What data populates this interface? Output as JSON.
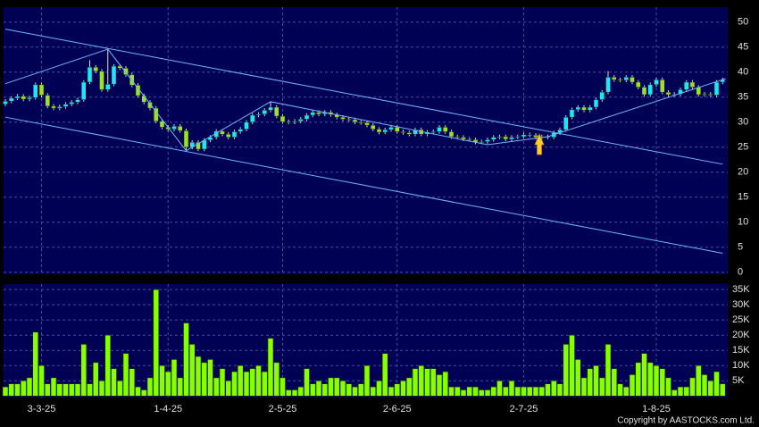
{
  "chart_data": [
    {
      "type": "candlestick",
      "categories": [
        null,
        null,
        null,
        null,
        null,
        null,
        "3-3-25",
        null,
        null,
        null,
        null,
        null,
        null,
        null,
        null,
        null,
        null,
        null,
        null,
        null,
        null,
        null,
        null,
        null,
        null,
        null,
        null,
        "1-4-25",
        null,
        null,
        null,
        null,
        null,
        null,
        null,
        null,
        null,
        null,
        null,
        null,
        null,
        null,
        null,
        null,
        null,
        null,
        "2-5-25",
        null,
        null,
        null,
        null,
        null,
        null,
        null,
        null,
        null,
        null,
        null,
        null,
        null,
        null,
        null,
        null,
        null,
        null,
        "2-6-25",
        null,
        null,
        null,
        null,
        null,
        null,
        null,
        null,
        null,
        null,
        null,
        null,
        null,
        null,
        null,
        null,
        null,
        null,
        null,
        null,
        "2-7-25",
        null,
        null,
        null,
        null,
        null,
        null,
        null,
        null,
        null,
        null,
        null,
        null,
        null,
        null,
        null,
        null,
        null,
        null,
        null,
        null,
        null,
        "1-8-25",
        null,
        null,
        null,
        null,
        null,
        null,
        null,
        null,
        null,
        null,
        null
      ],
      "open": [
        33.6,
        34.2,
        34.8,
        35.2,
        34.6,
        34.9,
        37.5,
        35.4,
        33.2,
        32.8,
        33.1,
        33.6,
        34.0,
        34.5,
        38.0,
        41.0,
        40.2,
        36.5,
        37.6,
        41.2,
        40.8,
        39.5,
        37.4,
        35.3,
        34.0,
        32.8,
        30.2,
        29.0,
        28.6,
        29.2,
        28.3,
        25.0,
        26.0,
        24.6,
        26.4,
        27.0,
        28.2,
        27.6,
        27.0,
        28.1,
        28.6,
        30.0,
        31.4,
        31.6,
        32.4,
        33.0,
        31.2,
        30.1,
        30.0,
        30.2,
        30.6,
        31.4,
        32.0,
        31.6,
        32.0,
        31.5,
        31.0,
        30.6,
        30.5,
        30.0,
        29.9,
        29.4,
        28.6,
        28.0,
        28.5,
        29.0,
        28.1,
        27.9,
        27.6,
        28.5,
        27.6,
        28.0,
        28.1,
        29.0,
        28.1,
        27.1,
        27.0,
        26.6,
        26.5,
        26.0,
        26.1,
        26.5,
        27.0,
        27.1,
        26.6,
        27.0,
        27.1,
        27.5,
        27.4,
        27.0,
        27.1,
        27.0,
        27.9,
        28.5,
        31.0,
        32.5,
        33.0,
        32.4,
        33.0,
        34.5,
        36.0,
        39.0,
        38.5,
        38.4,
        39.0,
        38.0,
        37.0,
        35.5,
        37.5,
        38.5,
        36.0,
        35.5,
        35.6,
        36.5,
        38.0,
        37.0,
        35.5,
        35.6,
        35.4,
        38.0
      ],
      "high": [
        34.6,
        35.2,
        35.6,
        35.6,
        35.3,
        37.9,
        37.9,
        35.8,
        33.6,
        33.5,
        34.0,
        34.4,
        34.9,
        38.4,
        42.4,
        41.4,
        40.6,
        44.6,
        41.6,
        41.6,
        41.2,
        39.9,
        37.8,
        35.7,
        34.4,
        33.2,
        30.6,
        29.4,
        29.6,
        29.6,
        28.7,
        26.4,
        26.4,
        26.8,
        27.4,
        28.6,
        28.6,
        28.0,
        28.5,
        29.0,
        30.4,
        31.8,
        32.0,
        32.8,
        34.1,
        33.4,
        31.6,
        30.5,
        30.6,
        31.0,
        31.8,
        32.4,
        32.4,
        32.4,
        32.4,
        31.9,
        31.4,
        31.0,
        30.9,
        30.4,
        30.3,
        29.8,
        29.0,
        28.9,
        29.4,
        29.4,
        28.5,
        28.3,
        28.9,
        28.9,
        28.4,
        28.5,
        29.4,
        29.4,
        28.5,
        27.5,
        27.4,
        27.0,
        26.9,
        26.5,
        26.9,
        27.4,
        27.5,
        27.5,
        27.4,
        27.5,
        27.9,
        27.9,
        27.8,
        27.5,
        27.5,
        28.3,
        28.9,
        31.4,
        32.9,
        33.4,
        33.4,
        33.4,
        34.9,
        36.4,
        40.2,
        39.4,
        38.9,
        39.4,
        39.4,
        38.4,
        37.4,
        37.9,
        38.9,
        38.9,
        36.4,
        36.0,
        36.9,
        38.4,
        38.4,
        37.4,
        36.0,
        36.0,
        38.4,
        38.9
      ],
      "low": [
        33.2,
        33.8,
        34.4,
        34.2,
        34.2,
        34.5,
        35.0,
        32.8,
        32.4,
        32.4,
        32.7,
        33.2,
        33.6,
        34.1,
        37.6,
        39.8,
        36.1,
        36.1,
        37.2,
        40.4,
        39.1,
        37.0,
        34.9,
        33.6,
        32.4,
        29.8,
        28.6,
        28.2,
        28.2,
        27.9,
        24.3,
        24.6,
        24.2,
        24.2,
        26.0,
        26.6,
        27.2,
        26.6,
        26.6,
        27.7,
        28.2,
        29.6,
        31.0,
        31.2,
        32.0,
        30.8,
        29.7,
        29.6,
        29.6,
        29.8,
        30.2,
        31.0,
        31.2,
        31.2,
        31.1,
        30.6,
        30.2,
        30.1,
        29.6,
        29.5,
        29.0,
        28.2,
        27.6,
        27.6,
        28.1,
        27.7,
        27.5,
        27.2,
        27.2,
        27.2,
        27.2,
        27.6,
        27.7,
        27.7,
        26.7,
        26.6,
        26.2,
        26.1,
        25.6,
        25.6,
        25.7,
        26.1,
        26.6,
        26.2,
        26.2,
        26.6,
        26.7,
        27.0,
        26.6,
        26.6,
        26.6,
        26.6,
        27.5,
        28.1,
        30.6,
        32.1,
        32.0,
        32.0,
        32.6,
        34.1,
        35.6,
        38.1,
        38.0,
        38.0,
        37.6,
        36.6,
        35.1,
        35.1,
        37.1,
        35.6,
        35.1,
        35.1,
        35.2,
        36.1,
        36.6,
        35.1,
        35.1,
        35.0,
        35.0,
        37.6
      ],
      "close": [
        34.2,
        34.8,
        35.2,
        34.6,
        34.9,
        37.5,
        35.4,
        33.2,
        32.8,
        33.1,
        33.6,
        34.0,
        34.5,
        38.0,
        41.0,
        40.2,
        36.5,
        37.6,
        41.2,
        40.8,
        39.5,
        37.4,
        35.3,
        34.0,
        32.8,
        30.2,
        29.0,
        28.6,
        29.2,
        28.3,
        25.0,
        26.0,
        24.6,
        26.4,
        27.0,
        28.2,
        27.6,
        27.0,
        28.1,
        28.6,
        30.0,
        31.4,
        31.6,
        32.4,
        33.0,
        31.2,
        30.1,
        30.0,
        30.2,
        30.6,
        31.4,
        32.0,
        31.6,
        32.0,
        31.5,
        31.0,
        30.6,
        30.5,
        30.0,
        29.9,
        29.4,
        28.6,
        28.0,
        28.5,
        29.0,
        28.1,
        27.9,
        27.6,
        28.5,
        27.6,
        28.0,
        28.1,
        29.0,
        28.1,
        27.1,
        27.0,
        26.6,
        26.5,
        26.0,
        26.1,
        26.5,
        27.0,
        27.1,
        26.6,
        27.0,
        27.1,
        27.5,
        27.4,
        27.0,
        27.1,
        27.0,
        27.9,
        28.5,
        31.0,
        32.5,
        33.0,
        32.4,
        33.0,
        34.5,
        36.0,
        39.0,
        38.5,
        38.4,
        39.0,
        38.0,
        37.0,
        35.5,
        37.5,
        38.5,
        36.0,
        35.5,
        35.6,
        36.5,
        38.0,
        37.0,
        35.5,
        35.6,
        35.4,
        38.0,
        38.5
      ],
      "up_color": "#19e6ff",
      "down_color": "#9be02a",
      "ylim": [
        -0.4,
        53
      ],
      "yticks": [
        0,
        5,
        10,
        15,
        20,
        25,
        30,
        35,
        40,
        45,
        50
      ],
      "grid": true,
      "lines": [
        {
          "x": [
            0,
            17,
            30,
            44,
            80,
            90,
            119.5
          ],
          "y": [
            37.7,
            44.6,
            24.3,
            34.1,
            25.5,
            27.1,
            38.7
          ]
        },
        {
          "x": [
            0,
            119
          ],
          "y": [
            48.6,
            21.6
          ]
        },
        {
          "x": [
            0,
            119
          ],
          "y": [
            31.0,
            3.8
          ]
        }
      ],
      "line_color": "#6fb6ff"
    },
    {
      "type": "bar",
      "values": [
        3000,
        4000,
        4000,
        5000,
        6000,
        21000,
        10000,
        4000,
        6000,
        4000,
        4000,
        4000,
        4000,
        17000,
        4000,
        11000,
        5000,
        20000,
        9000,
        5000,
        14000,
        9000,
        3000,
        2000,
        6000,
        35000,
        10000,
        8000,
        12000,
        6000,
        24000,
        17000,
        13000,
        11000,
        12000,
        6000,
        9000,
        5000,
        8000,
        10000,
        8000,
        9000,
        10000,
        8000,
        19000,
        11000,
        6000,
        2000,
        2000,
        3000,
        9000,
        4000,
        5000,
        4000,
        6000,
        6000,
        5000,
        4000,
        3000,
        4000,
        10000,
        3000,
        5000,
        14000,
        3000,
        4000,
        5000,
        6000,
        9000,
        10000,
        9000,
        9000,
        7000,
        8000,
        3000,
        3000,
        2000,
        3000,
        3000,
        2000,
        2000,
        3000,
        5000,
        3000,
        5000,
        3000,
        3000,
        3000,
        3000,
        3000,
        4000,
        5000,
        4000,
        17000,
        20000,
        12000,
        6000,
        9000,
        10000,
        6000,
        17000,
        9000,
        4000,
        3000,
        7000,
        11000,
        14000,
        11000,
        10000,
        9000,
        6000,
        2000,
        3000,
        3000,
        6000,
        10000,
        7000,
        5000,
        8000,
        4000
      ],
      "color": "#88ff00",
      "ylim": [
        -500,
        36800
      ],
      "yticks": [
        {
          "value": 5000,
          "label": "5K"
        },
        {
          "value": 10000,
          "label": "10K"
        },
        {
          "value": 15000,
          "label": "15K"
        },
        {
          "value": 20000,
          "label": "20K"
        },
        {
          "value": 25000,
          "label": "25K"
        },
        {
          "value": 30000,
          "label": "30K"
        },
        {
          "value": 35000,
          "label": "35K"
        }
      ],
      "grid": true
    }
  ],
  "footer": "Copyright by AASTOCKS.com Ltd."
}
